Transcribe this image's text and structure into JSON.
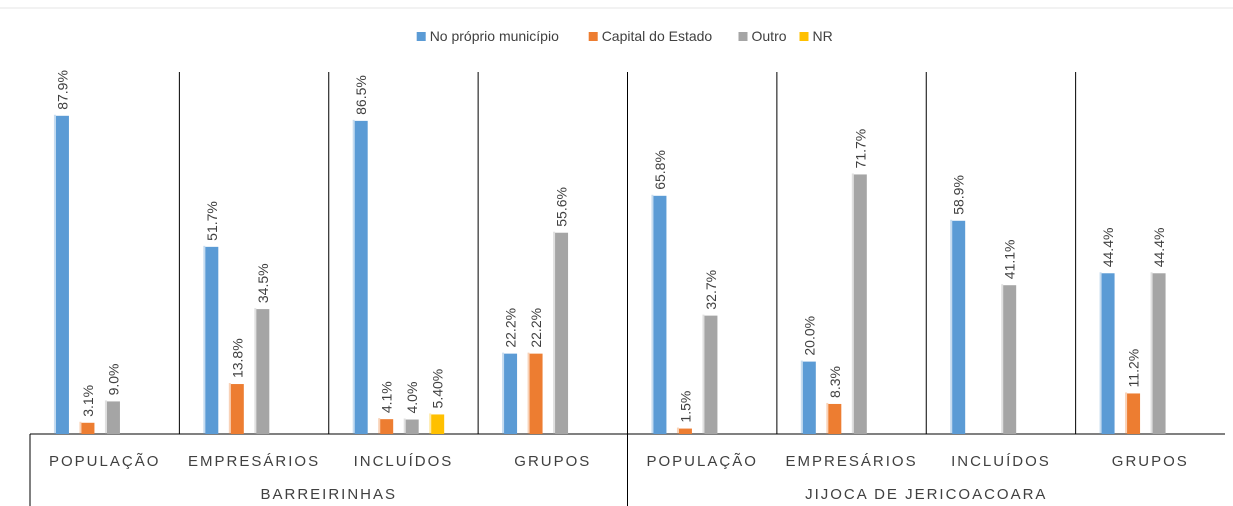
{
  "chart_data": {
    "type": "bar",
    "groups": [
      {
        "name": "BARREIRINHAS",
        "categories": [
          "POPULAÇÃO",
          "EMPRESÁRIOS",
          "INCLUÍDOS",
          "GRUPOS"
        ]
      },
      {
        "name": "JIJOCA DE JERICOACOARA",
        "categories": [
          "POPULAÇÃO",
          "EMPRESÁRIOS",
          "INCLUÍDOS",
          "GRUPOS"
        ]
      }
    ],
    "series": [
      {
        "name": "No próprio município",
        "color": "#5b9bd5",
        "values": [
          87.9,
          51.7,
          86.5,
          22.2,
          65.8,
          20.0,
          58.9,
          44.4
        ],
        "value_labels": [
          "87.9%",
          "51.7%",
          "86.5%",
          "22.2%",
          "65.8%",
          "20.0%",
          "58.9%",
          "44.4%"
        ]
      },
      {
        "name": "Capital do Estado",
        "color": "#ed7d31",
        "values": [
          3.1,
          13.8,
          4.1,
          22.2,
          1.5,
          8.3,
          null,
          11.2
        ],
        "value_labels": [
          "3.1%",
          "13.8%",
          "4.1%",
          "22.2%",
          "1.5%",
          "8.3%",
          null,
          "11.2%"
        ]
      },
      {
        "name": "Outro",
        "color": "#a5a5a5",
        "values": [
          9.0,
          34.5,
          4.0,
          55.6,
          32.7,
          71.7,
          41.1,
          44.4
        ],
        "value_labels": [
          "9.0%",
          "34.5%",
          "4.0%",
          "55.6%",
          "32.7%",
          "71.7%",
          "41.1%",
          "44.4%"
        ]
      },
      {
        "name": "NR",
        "color": "#ffc000",
        "values": [
          null,
          null,
          5.4,
          null,
          null,
          null,
          null,
          null
        ],
        "value_labels": [
          null,
          null,
          "5.40%",
          null,
          null,
          null,
          null,
          null
        ]
      }
    ],
    "ylim": [
      0,
      100
    ],
    "legend": "top"
  }
}
